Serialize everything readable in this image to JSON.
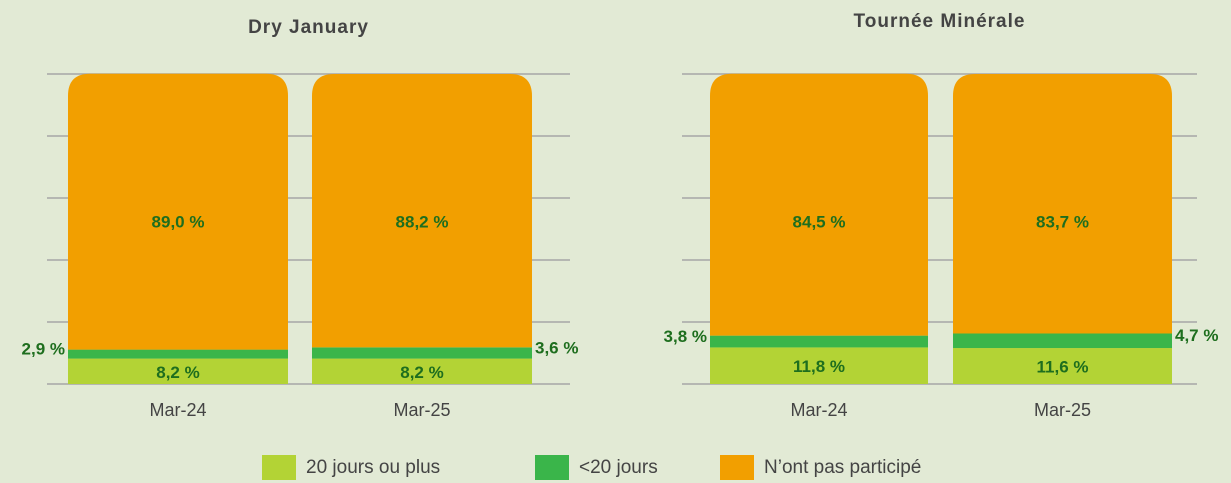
{
  "chart_data": [
    {
      "type": "stacked_bar",
      "title": "Dry January",
      "categories": [
        "Mar-24",
        "Mar-25"
      ],
      "series": [
        {
          "name": "20 jours ou plus",
          "color": "#b3d335",
          "values": [
            8.2,
            8.2
          ],
          "value_labels": [
            "8,2 %",
            "8,2 %"
          ]
        },
        {
          "name": "<20 jours",
          "color": "#3ab54a",
          "values": [
            2.9,
            3.6
          ],
          "value_labels": [
            "2,9 %",
            "3,6 %"
          ]
        },
        {
          "name": "N’ont pas participé",
          "color": "#f29f00",
          "values": [
            89.0,
            88.2
          ],
          "value_labels": [
            "89,0 %",
            "88,2 %"
          ]
        }
      ],
      "ylim": [
        0,
        100
      ],
      "yticks": [
        0,
        20,
        40,
        60,
        80,
        100
      ],
      "grid": true
    },
    {
      "type": "stacked_bar",
      "title": "Tournée Minérale",
      "categories": [
        "Mar-24",
        "Mar-25"
      ],
      "series": [
        {
          "name": "20 jours ou plus",
          "color": "#b3d335",
          "values": [
            11.8,
            11.6
          ],
          "value_labels": [
            "11,8 %",
            "11,6 %"
          ]
        },
        {
          "name": "<20 jours",
          "color": "#3ab54a",
          "values": [
            3.8,
            4.7
          ],
          "value_labels": [
            "3,8 %",
            "4,7 %"
          ]
        },
        {
          "name": "N’ont pas participé",
          "color": "#f29f00",
          "values": [
            84.5,
            83.7
          ],
          "value_labels": [
            "84,5 %",
            "83,7 %"
          ]
        }
      ],
      "ylim": [
        0,
        100
      ],
      "yticks": [
        0,
        20,
        40,
        60,
        80,
        100
      ],
      "grid": true
    }
  ]
}
